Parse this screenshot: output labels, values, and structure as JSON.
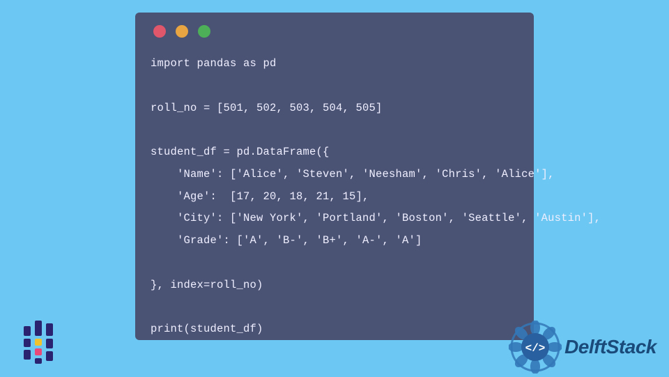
{
  "window": {
    "background_color": "#4b5374",
    "controls": {
      "red": "#e0566a",
      "yellow": "#e8a541",
      "green": "#4db059"
    }
  },
  "page": {
    "background_color": "#6cc8f2"
  },
  "code": {
    "lines": [
      "import pandas as pd",
      "",
      "roll_no = [501, 502, 503, 504, 505]",
      "",
      "student_df = pd.DataFrame({",
      "    'Name': ['Alice', 'Steven', 'Neesham', 'Chris', 'Alice'],",
      "    'Age':  [17, 20, 18, 21, 15],",
      "    'City': ['New York', 'Portland', 'Boston', 'Seattle', 'Austin'],",
      "    'Grade': ['A', 'B-', 'B+', 'A-', 'A']",
      "",
      "}, index=roll_no)",
      "",
      "print(student_df)"
    ],
    "text_color": "#eef",
    "font_size": 15.5
  },
  "left_logo": {
    "bars": [
      {
        "x": 0,
        "y": 8,
        "w": 10,
        "h": 14,
        "color": "#2a2370"
      },
      {
        "x": 0,
        "y": 26,
        "w": 10,
        "h": 12,
        "color": "#2a2370"
      },
      {
        "x": 0,
        "y": 42,
        "w": 10,
        "h": 14,
        "color": "#2a2370"
      },
      {
        "x": 16,
        "y": 0,
        "w": 10,
        "h": 22,
        "color": "#2a2370"
      },
      {
        "x": 16,
        "y": 26,
        "w": 10,
        "h": 10,
        "color": "#f0c22d"
      },
      {
        "x": 16,
        "y": 40,
        "w": 10,
        "h": 10,
        "color": "#e84a7a"
      },
      {
        "x": 16,
        "y": 54,
        "w": 10,
        "h": 8,
        "color": "#2a2370"
      },
      {
        "x": 32,
        "y": 4,
        "w": 10,
        "h": 18,
        "color": "#2a2370"
      },
      {
        "x": 32,
        "y": 26,
        "w": 10,
        "h": 14,
        "color": "#2a2370"
      },
      {
        "x": 32,
        "y": 44,
        "w": 10,
        "h": 14,
        "color": "#2a2370"
      }
    ]
  },
  "right_brand": {
    "text": "DelftStack",
    "text_color": "#1a4a7a",
    "badge_color": "#3378b8",
    "badge_inner": "#2860a0"
  }
}
